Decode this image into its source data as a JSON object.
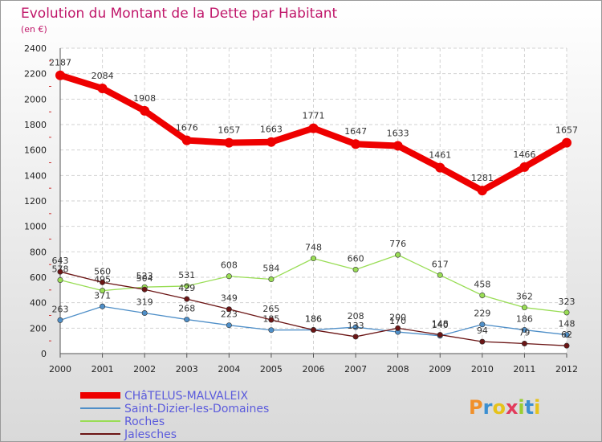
{
  "chart_data": {
    "type": "line",
    "title": "Evolution du Montant de la Dette par Habitant",
    "subtitle": "(en €)",
    "x": [
      "2000",
      "2001",
      "2002",
      "2003",
      "2004",
      "2005",
      "2006",
      "2007",
      "2008",
      "2009",
      "2010",
      "2011",
      "2012"
    ],
    "ylim": [
      0,
      2400
    ],
    "yticks": [
      0,
      200,
      400,
      600,
      800,
      1000,
      1200,
      1400,
      1600,
      1800,
      2000,
      2200,
      2400
    ],
    "grid": true,
    "legend_position": "bottom-left",
    "series": [
      {
        "name": "CHâTELUS-MALVALEIX",
        "color": "#ee0000",
        "values": [
          2187,
          2084,
          1908,
          1676,
          1657,
          1663,
          1771,
          1647,
          1633,
          1461,
          1281,
          1466,
          1657
        ]
      },
      {
        "name": "Saint-Dizier-les-Domaines",
        "color": "#4f8fc8",
        "values": [
          263,
          371,
          319,
          268,
          223,
          185,
          186,
          208,
          170,
          140,
          229,
          186,
          148
        ]
      },
      {
        "name": "Roches",
        "color": "#99dd55",
        "values": [
          578,
          495,
          523,
          531,
          608,
          584,
          748,
          660,
          776,
          617,
          458,
          362,
          323
        ]
      },
      {
        "name": "Jalesches",
        "color": "#6b1515",
        "values": [
          643,
          560,
          504,
          429,
          349,
          265,
          186,
          133,
          200,
          148,
          94,
          79,
          62
        ]
      }
    ]
  },
  "branding": {
    "logo_text": "Proxiti"
  }
}
